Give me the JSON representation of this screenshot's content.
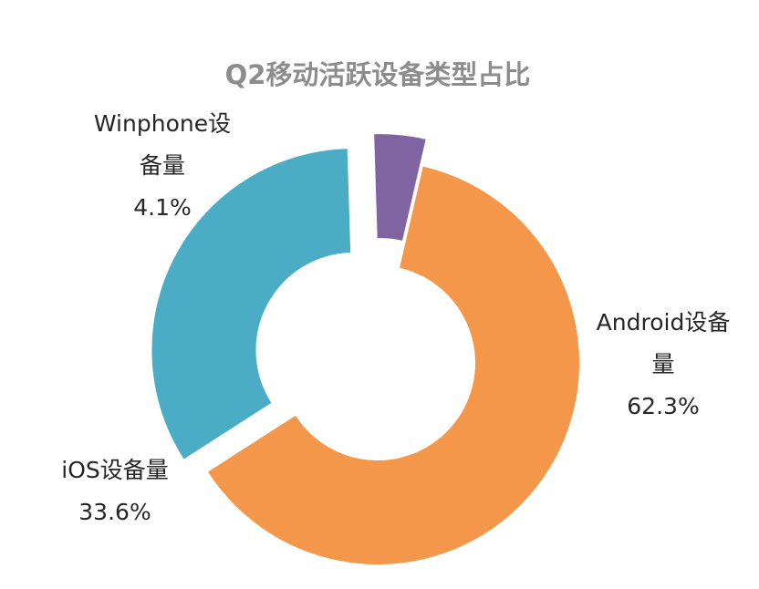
{
  "chart_data": {
    "type": "pie",
    "title": "Q2移动活跃设备类型占比",
    "unit": "%",
    "slices": [
      {
        "label_lines": [
          "Android设备",
          "量"
        ],
        "value": 62.3,
        "value_label": "62.3%",
        "color": "#f5974a",
        "exploded": false
      },
      {
        "label_lines": [
          "iOS设备量"
        ],
        "value": 33.6,
        "value_label": "33.6%",
        "color": "#4badc5",
        "exploded": true
      },
      {
        "label_lines": [
          "Winphone设",
          "备量"
        ],
        "value": 4.1,
        "value_label": "4.1%",
        "color": "#8064a2",
        "exploded": true
      }
    ]
  }
}
